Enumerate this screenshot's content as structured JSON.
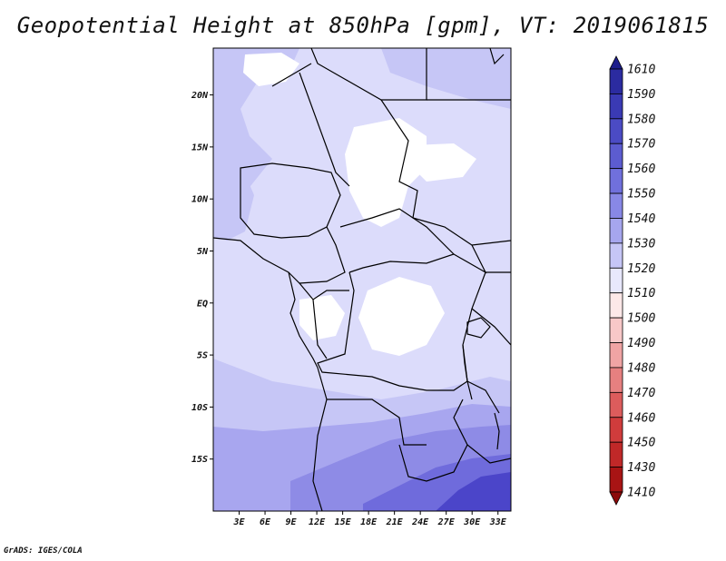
{
  "title": "Geopotential Height at 850hPa [gpm], VT: 2019061815",
  "credit": "GrADS: IGES/COLA",
  "colors": {
    "white": "#ffffff",
    "light1": "#dcdcfb",
    "light2": "#c6c6f6",
    "mid1": "#a8a6ef",
    "mid2": "#8e8be6",
    "deep1": "#6f6bdc",
    "deep2": "#4b45c9",
    "border": "#000000"
  },
  "map": {
    "lon_labels": [
      "3E",
      "6E",
      "9E",
      "12E",
      "15E",
      "18E",
      "21E",
      "24E",
      "27E",
      "30E",
      "33E"
    ],
    "lat_labels": [
      "20N",
      "15N",
      "10N",
      "5N",
      "EQ",
      "5S",
      "10S",
      "15S"
    ],
    "lon_range": [
      0,
      34.5
    ],
    "lat_range": [
      -20,
      24.5
    ]
  },
  "colorbar": {
    "labels": [
      "1610",
      "1590",
      "1580",
      "1570",
      "1560",
      "1550",
      "1540",
      "1530",
      "1520",
      "1510",
      "1500",
      "1490",
      "1480",
      "1470",
      "1460",
      "1450",
      "1430",
      "1410"
    ],
    "colors": [
      "#1e1e8c",
      "#2b2ba0",
      "#3a3ab4",
      "#4b4bc4",
      "#5c5cd0",
      "#7070dc",
      "#8888e6",
      "#a6a6ee",
      "#c6c6f6",
      "#e8e8fd",
      "#fde8e8",
      "#f8c8c8",
      "#f0a4a4",
      "#e68080",
      "#dc5c5c",
      "#d03c3c",
      "#c02828",
      "#a81414",
      "#8c0a0a"
    ]
  }
}
